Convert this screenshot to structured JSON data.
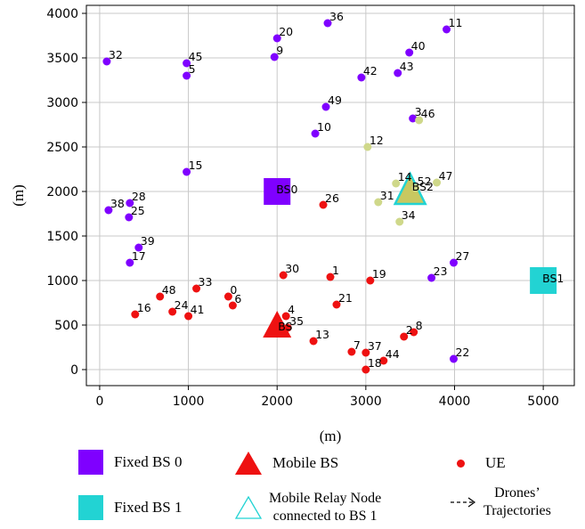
{
  "chart_data": {
    "type": "scatter",
    "xlabel": "(m)",
    "ylabel": "(m)",
    "xlim": [
      -150,
      5350
    ],
    "ylim": [
      -180,
      4090
    ],
    "xticks": [
      0,
      1000,
      2000,
      3000,
      4000,
      5000
    ],
    "yticks": [
      0,
      500,
      1000,
      1500,
      2000,
      2500,
      3000,
      3500,
      4000
    ],
    "grid": true,
    "colors": {
      "ue_bs0": "#7f00ff",
      "ue_bs1": "#cfd88a",
      "ue_mobile": "#ee1111",
      "fixed_bs0": "#7f00ff",
      "fixed_bs1": "#22d3d3",
      "mobile_bs": "#ee1111",
      "relay_fill": "#c8c860",
      "relay_edge": "#22d3d3"
    },
    "ue_points": [
      {
        "id": "0",
        "x": 1450,
        "y": 820,
        "group": "mobile"
      },
      {
        "id": "1",
        "x": 2600,
        "y": 1040,
        "group": "mobile"
      },
      {
        "id": "2",
        "x": 3430,
        "y": 370,
        "group": "mobile"
      },
      {
        "id": "3",
        "x": 3530,
        "y": 2820,
        "group": "bs0"
      },
      {
        "id": "4",
        "x": 2100,
        "y": 600,
        "group": "mobile"
      },
      {
        "id": "5",
        "x": 980,
        "y": 3300,
        "group": "bs0"
      },
      {
        "id": "6",
        "x": 1500,
        "y": 720,
        "group": "mobile"
      },
      {
        "id": "7",
        "x": 2840,
        "y": 200,
        "group": "mobile"
      },
      {
        "id": "8",
        "x": 3540,
        "y": 420,
        "group": "mobile"
      },
      {
        "id": "9",
        "x": 1970,
        "y": 3510,
        "group": "bs0"
      },
      {
        "id": "10",
        "x": 2430,
        "y": 2650,
        "group": "bs0"
      },
      {
        "id": "11",
        "x": 3910,
        "y": 3820,
        "group": "bs0"
      },
      {
        "id": "12",
        "x": 3020,
        "y": 2500,
        "group": "bs1"
      },
      {
        "id": "13",
        "x": 2410,
        "y": 320,
        "group": "mobile"
      },
      {
        "id": "14",
        "x": 3340,
        "y": 2090,
        "group": "bs1"
      },
      {
        "id": "15",
        "x": 980,
        "y": 2220,
        "group": "bs0"
      },
      {
        "id": "16",
        "x": 400,
        "y": 620,
        "group": "mobile"
      },
      {
        "id": "17",
        "x": 340,
        "y": 1200,
        "group": "bs0"
      },
      {
        "id": "18",
        "x": 3000,
        "y": 0,
        "group": "mobile"
      },
      {
        "id": "19",
        "x": 3050,
        "y": 1000,
        "group": "mobile"
      },
      {
        "id": "20",
        "x": 2000,
        "y": 3720,
        "group": "bs0"
      },
      {
        "id": "21",
        "x": 2670,
        "y": 730,
        "group": "mobile"
      },
      {
        "id": "22",
        "x": 3990,
        "y": 120,
        "group": "bs0"
      },
      {
        "id": "23",
        "x": 3740,
        "y": 1030,
        "group": "bs0"
      },
      {
        "id": "24",
        "x": 820,
        "y": 650,
        "group": "mobile"
      },
      {
        "id": "25",
        "x": 330,
        "y": 1710,
        "group": "bs0"
      },
      {
        "id": "26",
        "x": 2520,
        "y": 1850,
        "group": "mobile"
      },
      {
        "id": "27",
        "x": 3990,
        "y": 1200,
        "group": "bs0"
      },
      {
        "id": "28",
        "x": 340,
        "y": 1870,
        "group": "bs0"
      },
      {
        "id": "30",
        "x": 2070,
        "y": 1060,
        "group": "mobile"
      },
      {
        "id": "31",
        "x": 3140,
        "y": 1880,
        "group": "bs1"
      },
      {
        "id": "32",
        "x": 80,
        "y": 3460,
        "group": "bs0"
      },
      {
        "id": "33",
        "x": 1090,
        "y": 910,
        "group": "mobile"
      },
      {
        "id": "34",
        "x": 3380,
        "y": 1660,
        "group": "bs1"
      },
      {
        "id": "35",
        "x": 2120,
        "y": 470,
        "group": "mobile"
      },
      {
        "id": "36",
        "x": 2570,
        "y": 3890,
        "group": "bs0"
      },
      {
        "id": "37",
        "x": 3000,
        "y": 190,
        "group": "mobile"
      },
      {
        "id": "38",
        "x": 100,
        "y": 1790,
        "group": "bs0"
      },
      {
        "id": "39",
        "x": 440,
        "y": 1370,
        "group": "bs0"
      },
      {
        "id": "40",
        "x": 3490,
        "y": 3560,
        "group": "bs0"
      },
      {
        "id": "41",
        "x": 1000,
        "y": 600,
        "group": "mobile"
      },
      {
        "id": "42",
        "x": 2950,
        "y": 3280,
        "group": "bs0"
      },
      {
        "id": "43",
        "x": 3360,
        "y": 3330,
        "group": "bs0"
      },
      {
        "id": "44",
        "x": 3200,
        "y": 100,
        "group": "mobile"
      },
      {
        "id": "45",
        "x": 980,
        "y": 3440,
        "group": "bs0"
      },
      {
        "id": "46",
        "x": 3600,
        "y": 2800,
        "group": "bs1"
      },
      {
        "id": "47",
        "x": 3800,
        "y": 2100,
        "group": "bs1"
      },
      {
        "id": "48",
        "x": 680,
        "y": 820,
        "group": "mobile"
      },
      {
        "id": "49",
        "x": 2550,
        "y": 2950,
        "group": "bs0"
      },
      {
        "id": "52",
        "x": 3560,
        "y": 2040,
        "group": "bs1"
      }
    ],
    "fixed_bs": [
      {
        "label": "BS0",
        "x": 2000,
        "y": 2000,
        "color_key": "fixed_bs0"
      },
      {
        "label": "BS1",
        "x": 5000,
        "y": 1000,
        "color_key": "fixed_bs1"
      }
    ],
    "mobile_bs": {
      "label": "BS",
      "x": 2000,
      "y": 480
    },
    "relay_node": {
      "label": "BS2",
      "x": 3500,
      "y": 2000
    },
    "legend": {
      "placement": "below",
      "items": [
        {
          "label": "Fixed BS 0"
        },
        {
          "label": "Mobile BS"
        },
        {
          "label": "UE"
        },
        {
          "label": "Fixed BS 1"
        },
        {
          "label": "Mobile Relay Node connected to BS 1",
          "line1": "Mobile Relay Node",
          "line2": "connected to BS 1"
        },
        {
          "label": "Drones' Trajectories",
          "line1": "Drones’",
          "line2": "Trajectories"
        }
      ]
    }
  }
}
